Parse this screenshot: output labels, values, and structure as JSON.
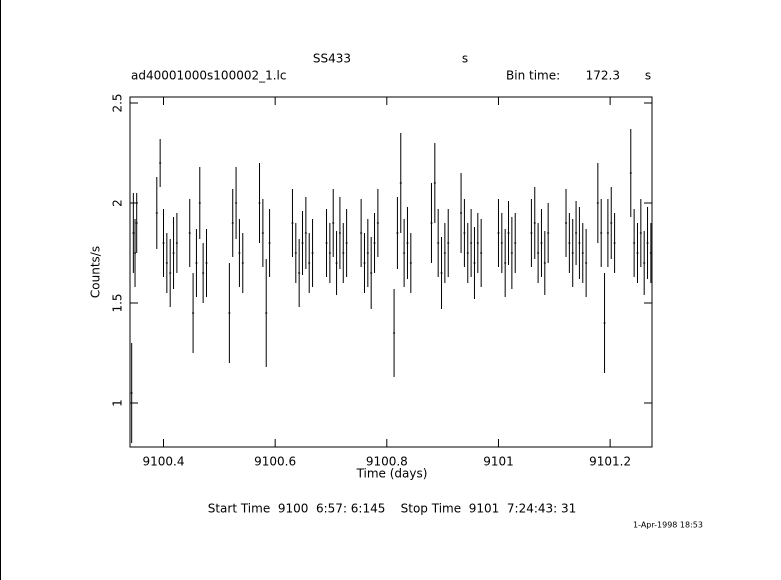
{
  "chart_data": {
    "type": "errorbar",
    "title": "SS433",
    "title_unit": "s",
    "subtitle": "ad40001000s100002_1.lc",
    "bin_label": "Bin time:",
    "bin_value": "172.3",
    "bin_unit": "s",
    "x_label": "Time (days)",
    "y_label": "Counts/s",
    "footer": "Start Time  9100  6:57: 6:145    Stop Time  9101  7:24:43: 31",
    "date": "1-Apr-1998 18:53",
    "color": "#000000",
    "xlim": [
      9100.34,
      9101.275
    ],
    "xticks": [
      9100.4,
      9100.6,
      9100.8,
      9101,
      9101.2
    ],
    "ylim": [
      0.78,
      2.53
    ],
    "yticks": [
      1,
      1.5,
      2,
      2.5
    ],
    "x": [
      9100.343,
      9100.346,
      9100.349,
      9100.352,
      9100.388,
      9100.394,
      9100.4,
      9100.406,
      9100.412,
      9100.418,
      9100.424,
      9100.447,
      9100.453,
      9100.459,
      9100.465,
      9100.471,
      9100.477,
      9100.518,
      9100.524,
      9100.53,
      9100.536,
      9100.542,
      9100.572,
      9100.578,
      9100.584,
      9100.59,
      9100.631,
      9100.637,
      9100.643,
      9100.649,
      9100.655,
      9100.661,
      9100.667,
      9100.692,
      9100.698,
      9100.704,
      9100.71,
      9100.716,
      9100.722,
      9100.728,
      9100.754,
      9100.76,
      9100.766,
      9100.772,
      9100.778,
      9100.784,
      9100.813,
      9100.819,
      9100.825,
      9100.831,
      9100.837,
      9100.843,
      9100.88,
      9100.886,
      9100.892,
      9100.898,
      9100.904,
      9100.91,
      9100.933,
      9100.939,
      9100.945,
      9100.951,
      9100.957,
      9100.963,
      9100.969,
      9101,
      9101.006,
      9101.012,
      9101.018,
      9101.024,
      9101.03,
      9101.059,
      9101.065,
      9101.071,
      9101.077,
      9101.083,
      9101.089,
      9101.121,
      9101.127,
      9101.133,
      9101.139,
      9101.145,
      9101.151,
      9101.157,
      9101.178,
      9101.184,
      9101.19,
      9101.196,
      9101.202,
      9101.208,
      9101.237,
      9101.243,
      9101.249,
      9101.255,
      9101.261,
      9101.267,
      9101.273
    ],
    "values": [
      1.05,
      1.85,
      1.75,
      1.9,
      1.95,
      2.2,
      1.8,
      1.7,
      1.65,
      1.75,
      1.8,
      1.85,
      1.45,
      1.7,
      2.0,
      1.65,
      1.7,
      1.45,
      1.9,
      2.0,
      1.75,
      1.7,
      2.0,
      1.85,
      1.45,
      1.8,
      1.9,
      1.75,
      1.65,
      1.8,
      1.85,
      1.7,
      1.75,
      1.8,
      1.75,
      1.9,
      1.7,
      1.85,
      1.75,
      1.8,
      1.85,
      1.7,
      1.75,
      1.65,
      1.8,
      1.9,
      1.35,
      1.85,
      2.1,
      1.75,
      1.8,
      1.7,
      1.9,
      2.1,
      1.8,
      1.65,
      1.75,
      1.8,
      1.95,
      1.85,
      1.75,
      1.8,
      1.7,
      1.8,
      1.75,
      1.85,
      1.8,
      1.7,
      1.85,
      1.75,
      1.8,
      1.85,
      1.9,
      1.75,
      1.8,
      1.7,
      1.85,
      1.9,
      1.8,
      1.75,
      1.85,
      1.8,
      1.75,
      1.7,
      2.0,
      1.85,
      1.4,
      1.85,
      1.9,
      1.8,
      2.15,
      1.8,
      1.75,
      1.85,
      1.7,
      1.8,
      1.75
    ],
    "errors": [
      0.25,
      0.2,
      0.17,
      0.15,
      0.18,
      0.12,
      0.17,
      0.15,
      0.17,
      0.18,
      0.15,
      0.17,
      0.2,
      0.17,
      0.18,
      0.15,
      0.17,
      0.25,
      0.17,
      0.18,
      0.17,
      0.15,
      0.2,
      0.17,
      0.27,
      0.17,
      0.17,
      0.15,
      0.17,
      0.16,
      0.18,
      0.15,
      0.17,
      0.17,
      0.15,
      0.17,
      0.16,
      0.18,
      0.15,
      0.17,
      0.17,
      0.15,
      0.17,
      0.18,
      0.15,
      0.17,
      0.22,
      0.18,
      0.25,
      0.17,
      0.18,
      0.15,
      0.2,
      0.2,
      0.17,
      0.18,
      0.15,
      0.17,
      0.2,
      0.17,
      0.15,
      0.17,
      0.18,
      0.15,
      0.17,
      0.17,
      0.15,
      0.17,
      0.16,
      0.18,
      0.15,
      0.17,
      0.18,
      0.15,
      0.17,
      0.16,
      0.15,
      0.17,
      0.15,
      0.17,
      0.16,
      0.18,
      0.15,
      0.17,
      0.2,
      0.17,
      0.25,
      0.17,
      0.18,
      0.15,
      0.22,
      0.17,
      0.15,
      0.17,
      0.16,
      0.18,
      0.15
    ]
  }
}
